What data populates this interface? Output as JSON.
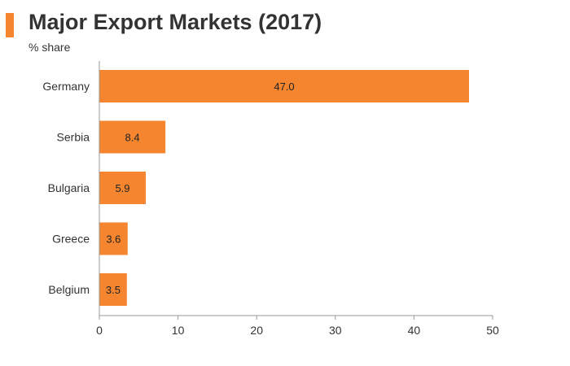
{
  "accent_color": "#F5862F",
  "header": {
    "title": "Major Export Markets (2017)",
    "subtitle": "% share"
  },
  "chart_data": {
    "type": "bar",
    "orientation": "horizontal",
    "title": "Major Export Markets (2017)",
    "subtitle": "% share",
    "xlabel": "",
    "ylabel": "",
    "categories": [
      "Germany",
      "Serbia",
      "Bulgaria",
      "Greece",
      "Belgium"
    ],
    "values": [
      47.0,
      8.4,
      5.9,
      3.6,
      3.5
    ],
    "data_labels": [
      "47.0",
      "8.4",
      "5.9",
      "3.6",
      "3.5"
    ],
    "xlim": [
      0,
      50
    ],
    "xticks": [
      0,
      10,
      20,
      30,
      40,
      50
    ],
    "grid": false,
    "legend": "none",
    "bar_color": "#F5862F",
    "axis_color": "#999999"
  }
}
